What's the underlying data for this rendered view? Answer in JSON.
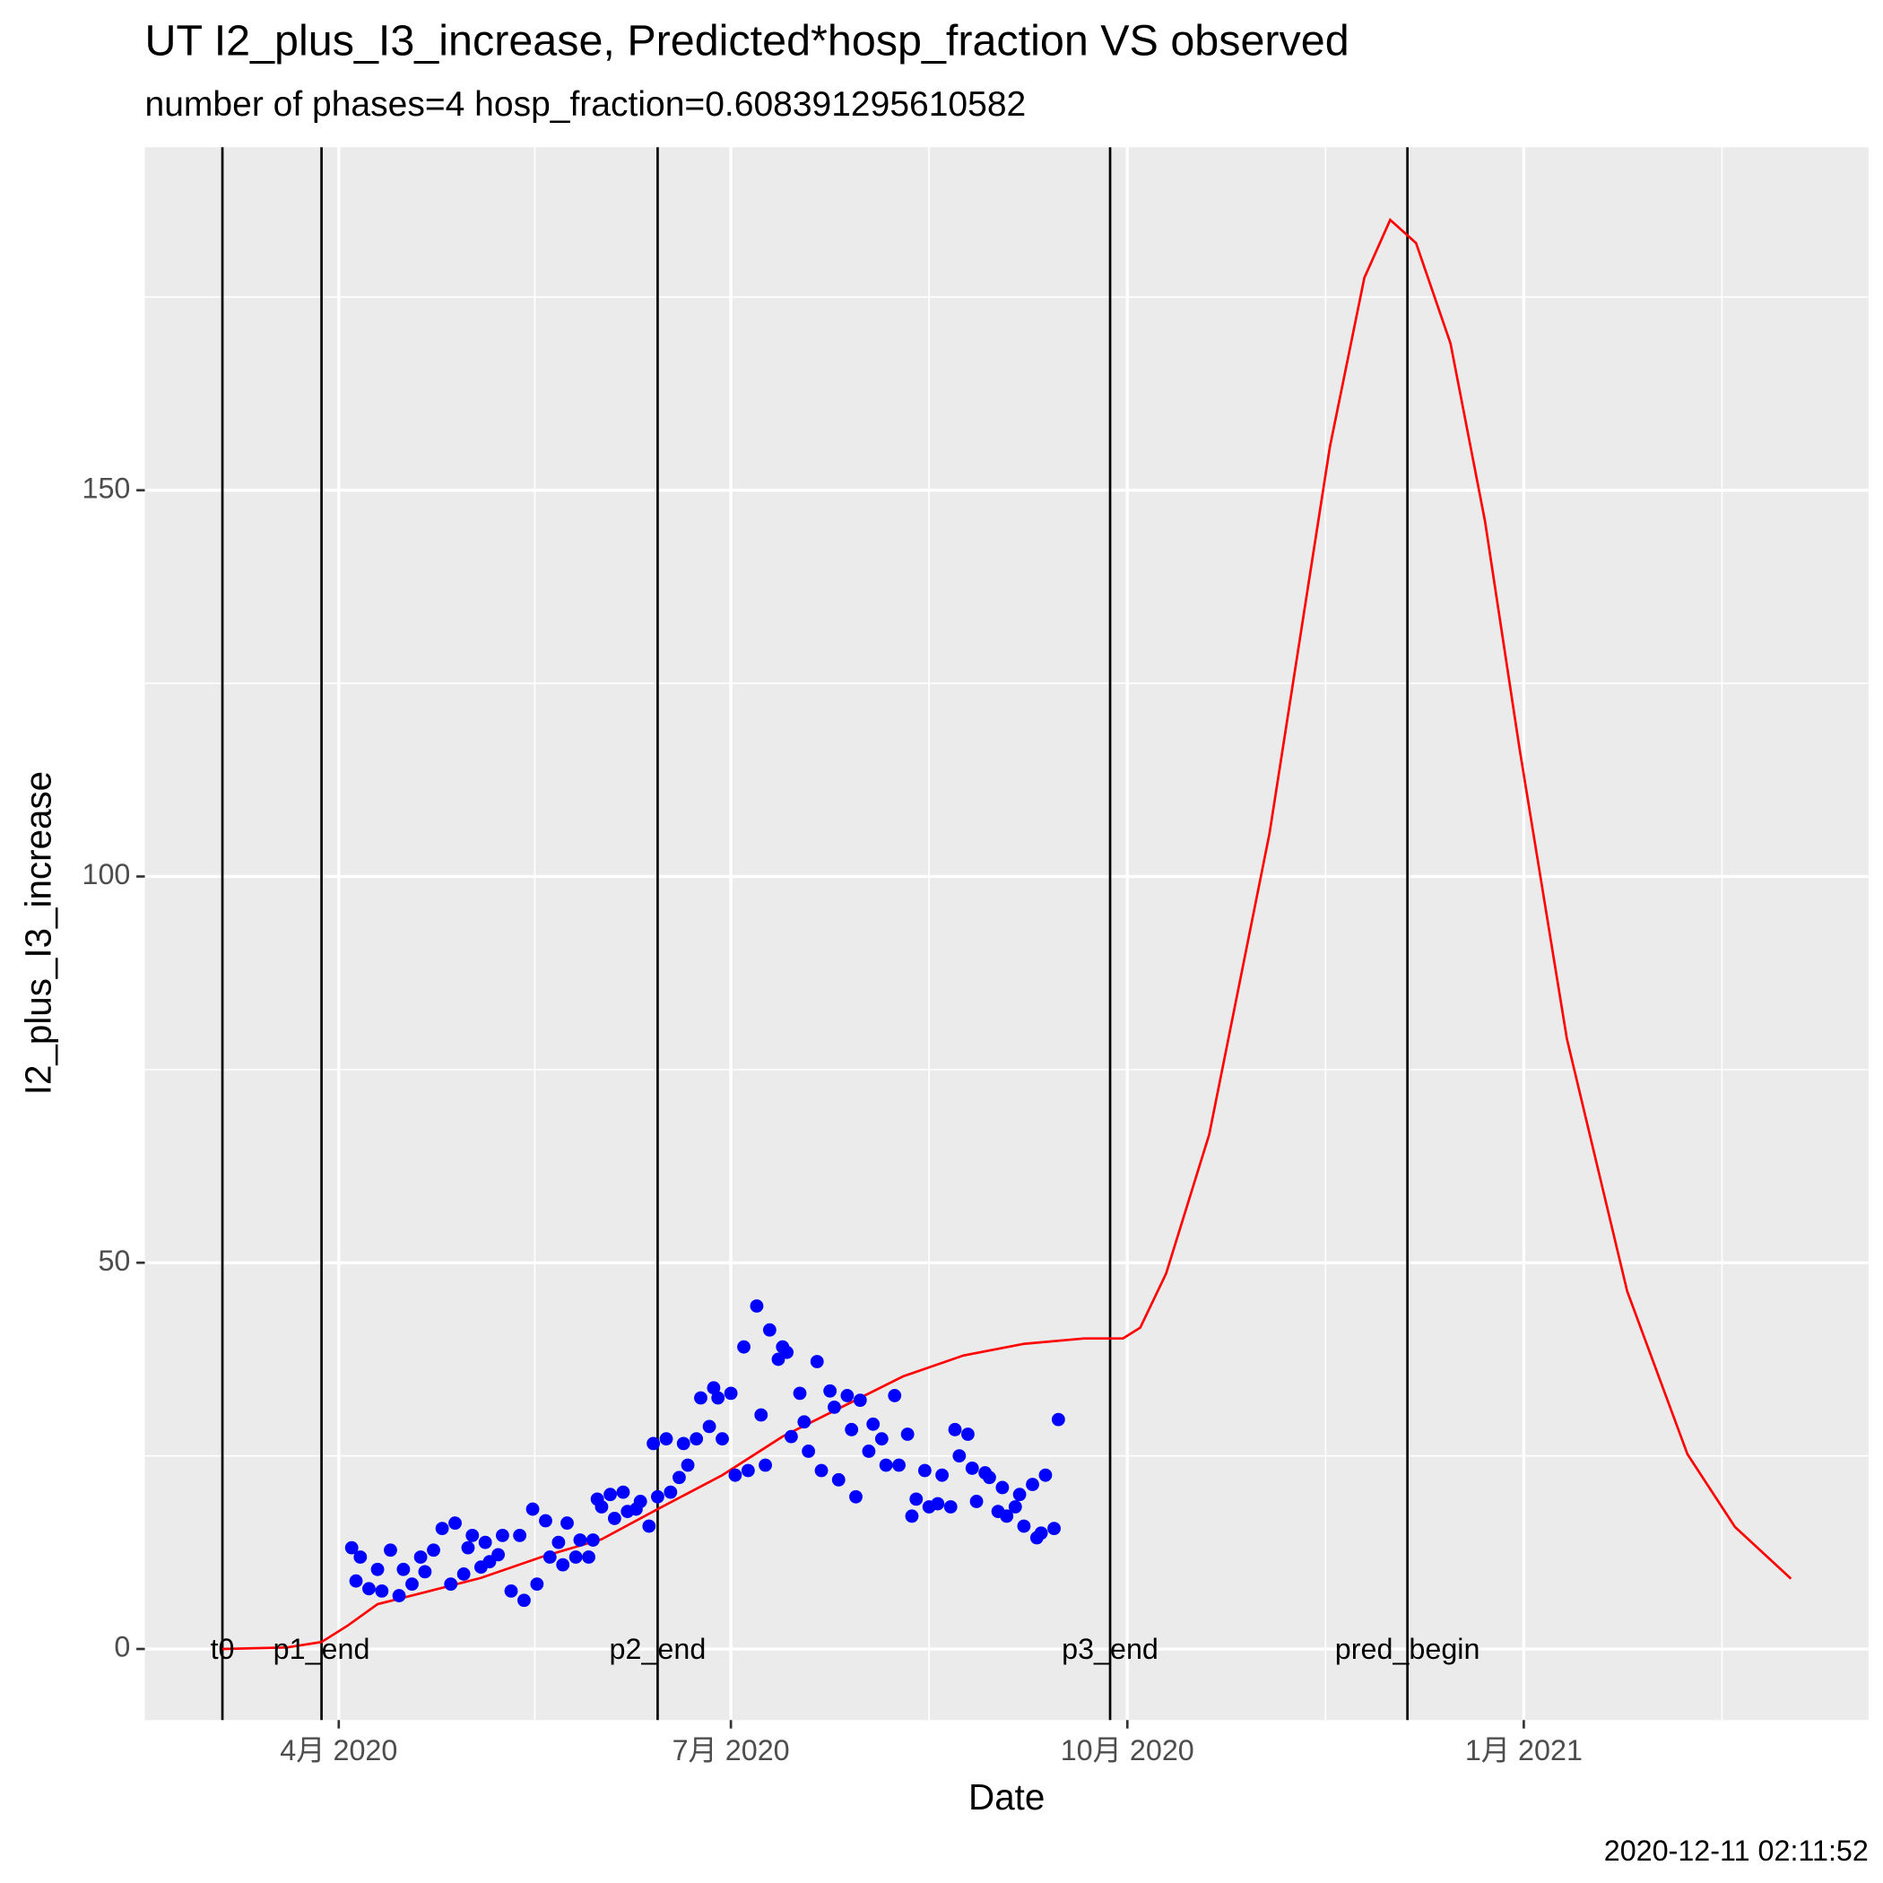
{
  "chart_data": {
    "type": "line",
    "title": "UT I2_plus_I3_increase, Predicted*hosp_fraction VS observed",
    "subtitle": "number of phases=4   hosp_fraction=0.608391295610582",
    "x_label": "Date",
    "y_label": "I2_plus_I3_increase",
    "caption": "2020-12-11 02:11:52",
    "xlim": [
      "2020-02-16",
      "2021-03-22"
    ],
    "xticks": [
      {
        "value": "2020-04-01",
        "label": "4月 2020"
      },
      {
        "value": "2020-07-01",
        "label": "7月 2020"
      },
      {
        "value": "2020-10-01",
        "label": "10月 2020"
      },
      {
        "value": "2021-01-01",
        "label": "1月 2021"
      }
    ],
    "ylim": [
      -9.2,
      194.4
    ],
    "yticks": [
      0,
      50,
      100,
      150
    ],
    "grid": true,
    "vlines": [
      {
        "x": "2020-03-05",
        "label": "t0"
      },
      {
        "x": "2020-03-28",
        "label": "p1_end"
      },
      {
        "x": "2020-06-14",
        "label": "p2_end"
      },
      {
        "x": "2020-09-27",
        "label": "p3_end"
      },
      {
        "x": "2020-12-05",
        "label": "pred_begin"
      }
    ],
    "series": [
      {
        "type": "line",
        "color": "#ff0000",
        "x": [
          "2020-03-05",
          "2020-03-20",
          "2020-03-28",
          "2020-04-03",
          "2020-04-10",
          "2020-04-20",
          "2020-05-04",
          "2020-05-18",
          "2020-06-01",
          "2020-06-14",
          "2020-06-29",
          "2020-07-13",
          "2020-07-27",
          "2020-08-10",
          "2020-08-24",
          "2020-09-07",
          "2020-09-21",
          "2020-09-30",
          "2020-10-04",
          "2020-10-10",
          "2020-10-20",
          "2020-11-03",
          "2020-11-17",
          "2020-11-25",
          "2020-12-01",
          "2020-12-07",
          "2020-12-15",
          "2020-12-23",
          "2020-12-31",
          "2021-01-11",
          "2021-01-25",
          "2021-02-08",
          "2021-02-19",
          "2021-03-04"
        ],
        "values": [
          0,
          0.2,
          0.9,
          3,
          5.8,
          7.2,
          9.2,
          11.9,
          14.2,
          18.1,
          22.5,
          27.5,
          31.4,
          35.3,
          38,
          39.5,
          40.2,
          40.2,
          41.6,
          48.6,
          66.6,
          105.6,
          155.6,
          177.5,
          185,
          182,
          169,
          146,
          116.6,
          79,
          46.3,
          25.2,
          15.8,
          9.1
        ]
      },
      {
        "type": "scatter",
        "color": "#0000ff",
        "x": [
          "2020-04-04",
          "2020-04-05",
          "2020-04-06",
          "2020-04-08",
          "2020-04-10",
          "2020-04-11",
          "2020-04-13",
          "2020-04-15",
          "2020-04-16",
          "2020-04-18",
          "2020-04-20",
          "2020-04-21",
          "2020-04-23",
          "2020-04-25",
          "2020-04-27",
          "2020-04-28",
          "2020-04-30",
          "2020-05-01",
          "2020-05-02",
          "2020-05-04",
          "2020-05-05",
          "2020-05-06",
          "2020-05-08",
          "2020-05-09",
          "2020-05-11",
          "2020-05-13",
          "2020-05-14",
          "2020-05-16",
          "2020-05-17",
          "2020-05-19",
          "2020-05-20",
          "2020-05-22",
          "2020-05-23",
          "2020-05-24",
          "2020-05-26",
          "2020-05-27",
          "2020-05-29",
          "2020-05-30",
          "2020-05-31",
          "2020-06-01",
          "2020-06-03",
          "2020-06-04",
          "2020-06-06",
          "2020-06-07",
          "2020-06-09",
          "2020-06-10",
          "2020-06-12",
          "2020-06-13",
          "2020-06-14",
          "2020-06-16",
          "2020-06-17",
          "2020-06-19",
          "2020-06-20",
          "2020-06-21",
          "2020-06-23",
          "2020-06-24",
          "2020-06-26",
          "2020-06-27",
          "2020-06-28",
          "2020-06-29",
          "2020-07-01",
          "2020-07-02",
          "2020-07-04",
          "2020-07-05",
          "2020-07-07",
          "2020-07-08",
          "2020-07-09",
          "2020-07-10",
          "2020-07-12",
          "2020-07-13",
          "2020-07-14",
          "2020-07-15",
          "2020-07-17",
          "2020-07-18",
          "2020-07-19",
          "2020-07-21",
          "2020-07-22",
          "2020-07-24",
          "2020-07-25",
          "2020-07-26",
          "2020-07-28",
          "2020-07-29",
          "2020-07-30",
          "2020-07-31",
          "2020-08-02",
          "2020-08-03",
          "2020-08-05",
          "2020-08-06",
          "2020-08-08",
          "2020-08-09",
          "2020-08-11",
          "2020-08-12",
          "2020-08-13",
          "2020-08-15",
          "2020-08-16",
          "2020-08-18",
          "2020-08-19",
          "2020-08-21",
          "2020-08-22",
          "2020-08-23",
          "2020-08-25",
          "2020-08-26",
          "2020-08-27",
          "2020-08-29",
          "2020-08-30",
          "2020-09-01",
          "2020-09-02",
          "2020-09-03",
          "2020-09-05",
          "2020-09-06",
          "2020-09-07",
          "2020-09-09",
          "2020-09-10",
          "2020-09-11",
          "2020-09-12",
          "2020-09-14",
          "2020-09-15"
        ],
        "values": [
          13.1,
          8.8,
          11.9,
          7.8,
          10.3,
          7.5,
          12.8,
          6.9,
          10.3,
          8.4,
          11.9,
          10,
          12.8,
          15.6,
          8.4,
          16.3,
          9.7,
          13.1,
          14.7,
          10.6,
          13.8,
          11.3,
          12.2,
          14.7,
          7.5,
          14.7,
          6.3,
          18.1,
          8.4,
          16.6,
          11.9,
          13.8,
          10.9,
          16.3,
          11.9,
          14.1,
          11.9,
          14.1,
          19.4,
          18.4,
          20,
          16.9,
          20.3,
          17.8,
          18.1,
          19.1,
          15.9,
          26.6,
          19.7,
          27.2,
          20.3,
          22.2,
          26.6,
          23.8,
          27.2,
          32.5,
          28.8,
          33.8,
          32.5,
          27.2,
          33.1,
          22.5,
          39.1,
          23.1,
          44.4,
          30.3,
          23.8,
          41.3,
          37.5,
          39.1,
          38.4,
          27.5,
          33.1,
          29.4,
          25.6,
          37.2,
          23.1,
          33.4,
          31.3,
          21.9,
          32.8,
          28.4,
          19.7,
          32.2,
          25.6,
          29.1,
          27.2,
          23.8,
          32.8,
          23.8,
          27.8,
          17.2,
          19.4,
          23.1,
          18.4,
          18.8,
          22.5,
          18.4,
          28.4,
          25,
          27.8,
          23.4,
          19.1,
          22.8,
          22.2,
          17.8,
          20.9,
          17.2,
          18.4,
          20,
          15.9,
          21.3,
          14.4,
          15,
          22.5,
          15.6,
          29.7
        ]
      }
    ]
  }
}
